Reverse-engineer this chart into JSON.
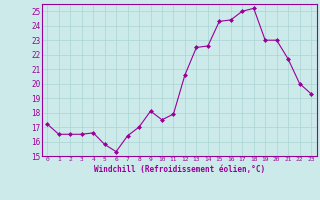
{
  "x": [
    0,
    1,
    2,
    3,
    4,
    5,
    6,
    7,
    8,
    9,
    10,
    11,
    12,
    13,
    14,
    15,
    16,
    17,
    18,
    19,
    20,
    21,
    22,
    23
  ],
  "y": [
    17.2,
    16.5,
    16.5,
    16.5,
    16.6,
    15.8,
    15.3,
    16.4,
    17.0,
    18.1,
    17.5,
    17.9,
    20.6,
    22.5,
    22.6,
    24.3,
    24.4,
    25.0,
    25.2,
    23.0,
    23.0,
    21.7,
    20.0,
    19.3
  ],
  "line_color": "#990099",
  "marker": "D",
  "marker_size": 2,
  "bg_color": "#cceaea",
  "grid_color": "#aad4d4",
  "xlabel": "Windchill (Refroidissement éolien,°C)",
  "xlabel_color": "#990099",
  "tick_color": "#990099",
  "label_color": "#990099",
  "ylim": [
    15,
    25.5
  ],
  "xlim": [
    -0.5,
    23.5
  ],
  "yticks": [
    15,
    16,
    17,
    18,
    19,
    20,
    21,
    22,
    23,
    24,
    25
  ],
  "xticks": [
    0,
    1,
    2,
    3,
    4,
    5,
    6,
    7,
    8,
    9,
    10,
    11,
    12,
    13,
    14,
    15,
    16,
    17,
    18,
    19,
    20,
    21,
    22,
    23
  ]
}
